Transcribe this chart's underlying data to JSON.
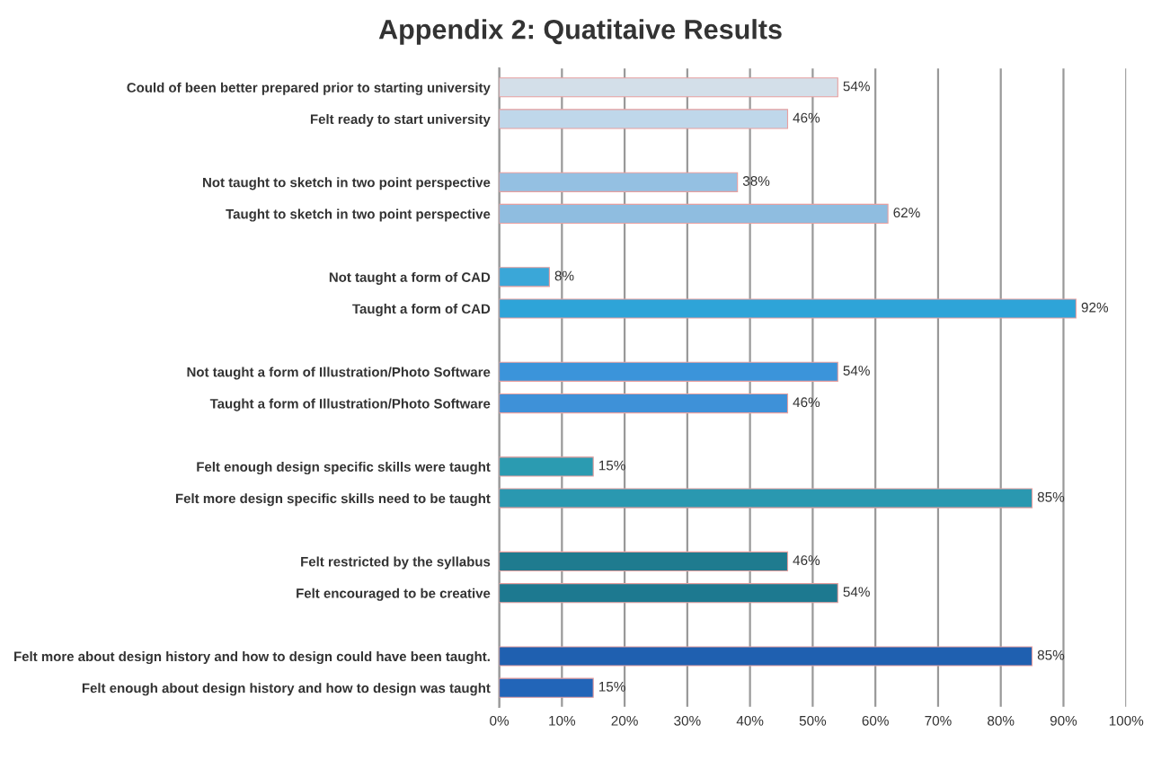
{
  "chart_data": {
    "type": "bar",
    "orientation": "horizontal",
    "title": "Appendix 2: Quatitaive Results",
    "categories": [
      "Could of been better prepared prior to starting university",
      "Felt ready to start university",
      null,
      "Not taught to sketch in two point perspective",
      "Taught to sketch in two point perspective",
      null,
      "Not taught a form of CAD",
      "Taught a form of CAD",
      null,
      "Not taught a form of Illustration/Photo Software",
      "Taught a form of Illustration/Photo Software",
      null,
      "Felt enough design specific skills were taught",
      "Felt more design specific skills need to be taught",
      null,
      "Felt restricted by the syllabus",
      "Felt encouraged to be creative",
      null,
      "Felt more about design history and how to design could have been taught.",
      "Felt enough about design history and how to design was taught"
    ],
    "values": [
      54,
      46,
      null,
      38,
      62,
      null,
      8,
      92,
      null,
      54,
      46,
      null,
      15,
      85,
      null,
      46,
      54,
      null,
      85,
      15
    ],
    "value_labels": [
      "54%",
      "46%",
      null,
      "38%",
      "62%",
      null,
      "8%",
      "92%",
      null,
      "54%",
      "46%",
      null,
      "15%",
      "85%",
      null,
      "46%",
      "54%",
      null,
      "85%",
      "15%"
    ],
    "colors": [
      "#d3dfe9",
      "#bfd7ea",
      null,
      "#94c0e2",
      "#8fbde0",
      null,
      "#3aa7d8",
      "#2ea4d8",
      null,
      "#3b94da",
      "#3e91d8",
      null,
      "#2b9bb1",
      "#2a98b0",
      null,
      "#1f7b8f",
      "#1d7990",
      null,
      "#1f60b0",
      "#2265b8"
    ],
    "xlim": [
      0,
      100
    ],
    "xticks": [
      {
        "value": 0,
        "label": "0%"
      },
      {
        "value": 10,
        "label": "10%"
      },
      {
        "value": 20,
        "label": "20%"
      },
      {
        "value": 30,
        "label": "30%"
      },
      {
        "value": 40,
        "label": "40%"
      },
      {
        "value": 50,
        "label": "50%"
      },
      {
        "value": 60,
        "label": "60%"
      },
      {
        "value": 70,
        "label": "70%"
      },
      {
        "value": 80,
        "label": "80%"
      },
      {
        "value": 90,
        "label": "90%"
      },
      {
        "value": 100,
        "label": "100%"
      }
    ],
    "grid": "x",
    "legend": false
  }
}
